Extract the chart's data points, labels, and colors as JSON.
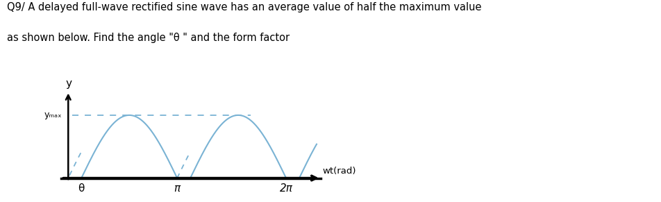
{
  "title_line1": "Q9/ A delayed full-wave rectified sine wave has an average value of half the maximum value",
  "title_line2": "as shown below. Find the angle \"θ \" and the form factor",
  "ylabel": "y",
  "xlabel_arrow": "wt(rad)",
  "ymax_label": "yₘₐₓ",
  "theta_label": "θ",
  "pi_label": "π",
  "twopi_label": "2π",
  "theta_val": 0.38,
  "wave_color": "#7ab3d4",
  "dashed_color": "#7ab3d4",
  "ymax_line_color": "#7ab3d4",
  "text_color": "black",
  "background_color": "white",
  "ymax": 1.0,
  "figsize": [
    9.53,
    2.91
  ],
  "dpi": 100
}
